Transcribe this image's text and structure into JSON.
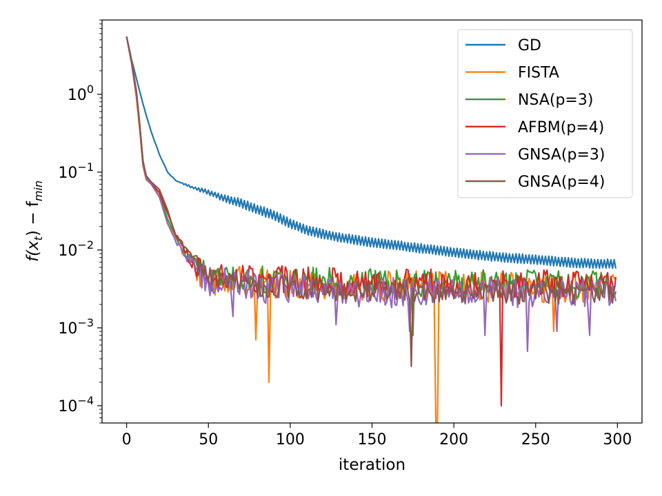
{
  "chart_data": {
    "type": "line",
    "title": "",
    "xlabel": "iteration",
    "ylabel_main": "f(x",
    "ylabel_sub_t": "t",
    "ylabel_mid": ") − f",
    "ylabel_sub_min": "min",
    "yscale": "log",
    "xlim": [
      -15,
      315
    ],
    "ylim": [
      6e-05,
      9
    ],
    "x_ticks": [
      0,
      50,
      100,
      150,
      200,
      250,
      300
    ],
    "x_tick_labels": [
      "0",
      "50",
      "100",
      "150",
      "200",
      "250",
      "300"
    ],
    "y_ticks": [
      0.0001,
      0.001,
      0.01,
      0.1,
      1
    ],
    "y_tick_base": "10",
    "y_tick_exponents": [
      "−4",
      "−3",
      "−2",
      "−1",
      "0"
    ],
    "legend_position": "top-right",
    "x": "0..299 (300 iterations)",
    "series": [
      {
        "name": "GD",
        "color": "#1f77b4",
        "anchors": [
          [
            0,
            5.5
          ],
          [
            3,
            2.8
          ],
          [
            6,
            1.6
          ],
          [
            10,
            0.75
          ],
          [
            15,
            0.33
          ],
          [
            20,
            0.17
          ],
          [
            25,
            0.1
          ],
          [
            30,
            0.078
          ],
          [
            40,
            0.064
          ],
          [
            50,
            0.055
          ],
          [
            60,
            0.046
          ],
          [
            70,
            0.04
          ],
          [
            80,
            0.033
          ],
          [
            90,
            0.028
          ],
          [
            100,
            0.022
          ],
          [
            110,
            0.018
          ],
          [
            120,
            0.016
          ],
          [
            130,
            0.0145
          ],
          [
            150,
            0.0125
          ],
          [
            175,
            0.0108
          ],
          [
            200,
            0.0093
          ],
          [
            225,
            0.0082
          ],
          [
            250,
            0.0075
          ],
          [
            275,
            0.0068
          ],
          [
            299,
            0.0066
          ]
        ],
        "oscillation_log10": 0.055,
        "spikes": []
      },
      {
        "name": "FISTA",
        "color": "#ff7f0e",
        "anchors": [
          [
            0,
            5.5
          ],
          [
            3,
            2.5
          ],
          [
            6,
            0.9
          ],
          [
            8,
            0.35
          ],
          [
            10,
            0.12
          ],
          [
            12,
            0.08
          ],
          [
            15,
            0.07
          ],
          [
            20,
            0.05
          ],
          [
            25,
            0.022
          ],
          [
            30,
            0.014
          ],
          [
            35,
            0.009
          ],
          [
            40,
            0.006
          ],
          [
            50,
            0.0042
          ],
          [
            80,
            0.0038
          ],
          [
            150,
            0.0034
          ],
          [
            299,
            0.0033
          ]
        ],
        "noise_log10": 0.2,
        "spikes": [
          [
            79,
            0.0007
          ],
          [
            87,
            0.0002
          ],
          [
            189,
            6e-05
          ],
          [
            190,
            6e-05
          ],
          [
            261,
            0.0009
          ]
        ]
      },
      {
        "name": "NSA(p=3)",
        "color": "#2ca02c",
        "anchors": [
          [
            0,
            5.5
          ],
          [
            3,
            2.6
          ],
          [
            6,
            1.0
          ],
          [
            8,
            0.4
          ],
          [
            10,
            0.14
          ],
          [
            12,
            0.085
          ],
          [
            15,
            0.072
          ],
          [
            20,
            0.055
          ],
          [
            25,
            0.025
          ],
          [
            30,
            0.015
          ],
          [
            35,
            0.01
          ],
          [
            40,
            0.007
          ],
          [
            50,
            0.0045
          ],
          [
            80,
            0.0042
          ],
          [
            150,
            0.0038
          ],
          [
            299,
            0.0036
          ]
        ],
        "noise_log10": 0.18,
        "spikes": [
          [
            175,
            0.0008
          ]
        ]
      },
      {
        "name": "AFBM(p=4)",
        "color": "#d62728",
        "anchors": [
          [
            0,
            5.5
          ],
          [
            3,
            2.6
          ],
          [
            6,
            1.0
          ],
          [
            8,
            0.4
          ],
          [
            10,
            0.13
          ],
          [
            12,
            0.082
          ],
          [
            15,
            0.071
          ],
          [
            20,
            0.055
          ],
          [
            25,
            0.03
          ],
          [
            30,
            0.016
          ],
          [
            35,
            0.011
          ],
          [
            40,
            0.007
          ],
          [
            50,
            0.0045
          ],
          [
            80,
            0.0042
          ],
          [
            150,
            0.0039
          ],
          [
            299,
            0.0036
          ]
        ],
        "noise_log10": 0.18,
        "spikes": [
          [
            229,
            0.0001
          ]
        ]
      },
      {
        "name": "GNSA(p=3)",
        "color": "#9467bd",
        "anchors": [
          [
            0,
            5.5
          ],
          [
            3,
            2.6
          ],
          [
            6,
            1.0
          ],
          [
            8,
            0.4
          ],
          [
            10,
            0.13
          ],
          [
            12,
            0.082
          ],
          [
            15,
            0.07
          ],
          [
            20,
            0.048
          ],
          [
            25,
            0.022
          ],
          [
            30,
            0.013
          ],
          [
            35,
            0.009
          ],
          [
            40,
            0.0065
          ],
          [
            50,
            0.004
          ],
          [
            80,
            0.0033
          ],
          [
            150,
            0.0029
          ],
          [
            299,
            0.0027
          ]
        ],
        "noise_log10": 0.2,
        "spikes": [
          [
            65,
            0.0014
          ],
          [
            128,
            0.0011
          ],
          [
            173,
            0.0009
          ],
          [
            219,
            0.0008
          ],
          [
            245,
            0.0005
          ],
          [
            263,
            0.0009
          ],
          [
            283,
            0.0008
          ]
        ]
      },
      {
        "name": "GNSA(p=4)",
        "color": "#8c564b",
        "anchors": [
          [
            0,
            5.5
          ],
          [
            3,
            2.7
          ],
          [
            6,
            1.1
          ],
          [
            8,
            0.42
          ],
          [
            10,
            0.14
          ],
          [
            12,
            0.09
          ],
          [
            15,
            0.075
          ],
          [
            20,
            0.06
          ],
          [
            25,
            0.033
          ],
          [
            30,
            0.015
          ],
          [
            35,
            0.011
          ],
          [
            40,
            0.008
          ],
          [
            50,
            0.0042
          ],
          [
            80,
            0.0034
          ],
          [
            150,
            0.003
          ],
          [
            299,
            0.0028
          ]
        ],
        "noise_log10": 0.15,
        "spikes": [
          [
            174,
            0.00032
          ]
        ]
      }
    ]
  }
}
